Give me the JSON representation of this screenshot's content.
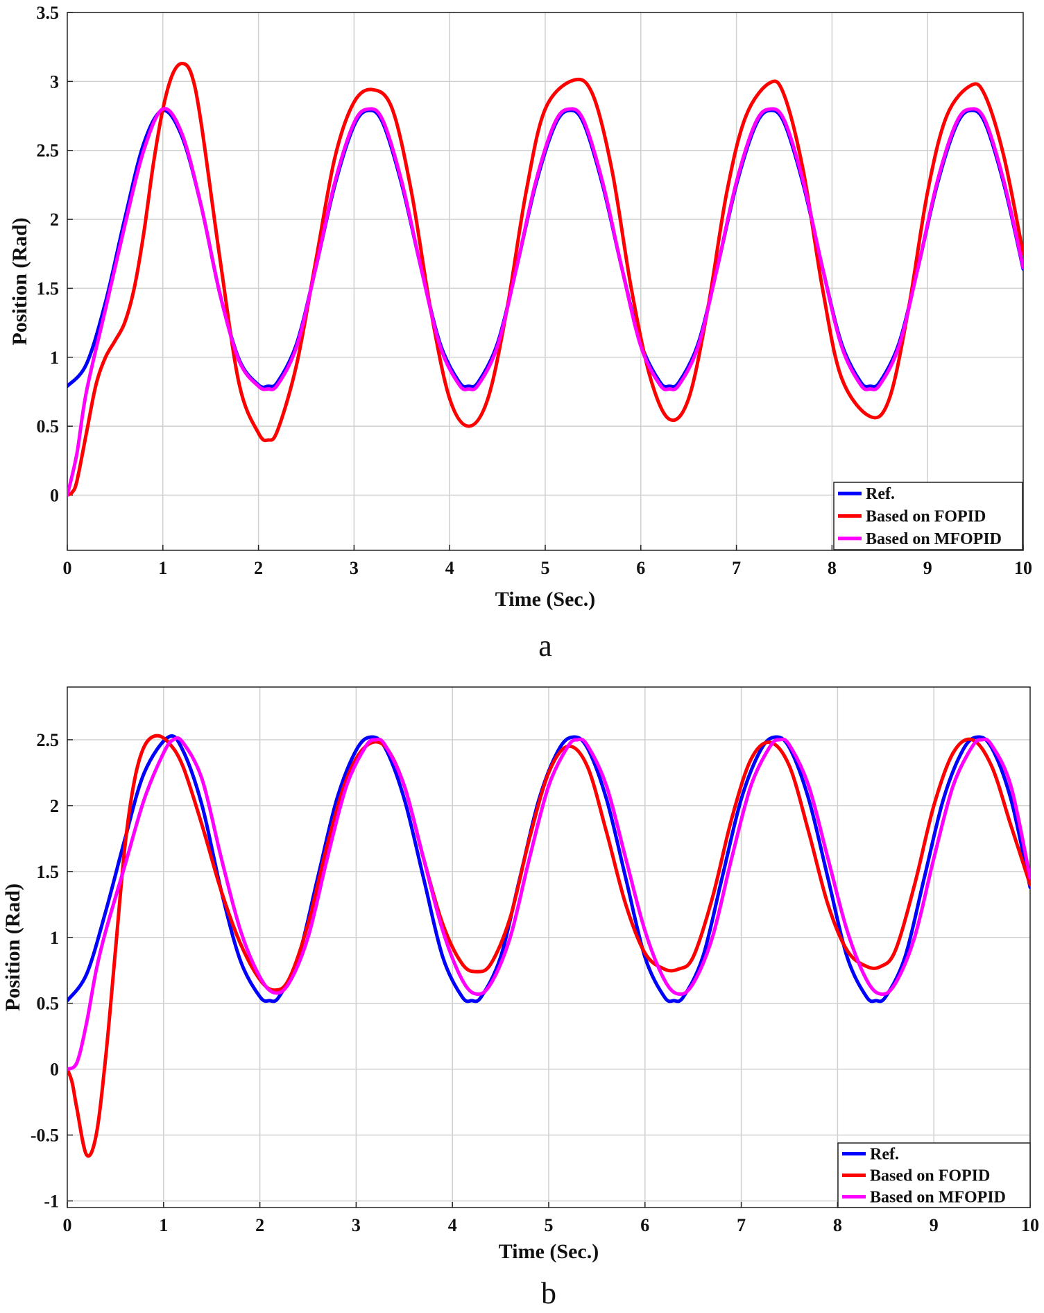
{
  "chart_data": [
    {
      "panel_label": "a",
      "type": "line",
      "title": "",
      "xlabel": "Time (Sec.)",
      "ylabel": "Position (Rad)",
      "xlim": [
        0,
        10
      ],
      "ylim": [
        -0.4,
        3.5
      ],
      "xticks": [
        0,
        1,
        2,
        3,
        4,
        5,
        6,
        7,
        8,
        9,
        10
      ],
      "yticks": [
        0,
        0.5,
        1,
        1.5,
        2,
        2.5,
        3,
        3.5
      ],
      "ytick_labels": [
        "0",
        "0.5",
        "1",
        "1.5",
        "2",
        "2.5",
        "3",
        "3.5"
      ],
      "grid": true,
      "legend_position": "bottom-right",
      "series": [
        {
          "name": "Ref.",
          "color": "#0000ff",
          "x": [
            0,
            0.2,
            0.4,
            0.6,
            0.8,
            1.0,
            1.2,
            1.4,
            1.6,
            1.8,
            2.0,
            2.1,
            2.2,
            2.4,
            2.6,
            2.8,
            3.0,
            3.15,
            3.3,
            3.5,
            3.7,
            3.9,
            4.1,
            4.2,
            4.3,
            4.5,
            4.7,
            4.9,
            5.1,
            5.25,
            5.4,
            5.6,
            5.8,
            6.0,
            6.2,
            6.3,
            6.4,
            6.6,
            6.8,
            7.0,
            7.2,
            7.35,
            7.5,
            7.7,
            7.9,
            8.1,
            8.3,
            8.4,
            8.5,
            8.7,
            8.9,
            9.1,
            9.3,
            9.45,
            9.6,
            9.8,
            10.0
          ],
          "y": [
            0.79,
            0.95,
            1.4,
            2.0,
            2.55,
            2.79,
            2.6,
            2.1,
            1.45,
            0.98,
            0.8,
            0.79,
            0.82,
            1.1,
            1.65,
            2.25,
            2.68,
            2.79,
            2.7,
            2.25,
            1.65,
            1.1,
            0.82,
            0.79,
            0.82,
            1.1,
            1.65,
            2.25,
            2.68,
            2.79,
            2.7,
            2.25,
            1.65,
            1.1,
            0.82,
            0.79,
            0.82,
            1.1,
            1.65,
            2.25,
            2.68,
            2.79,
            2.7,
            2.25,
            1.65,
            1.1,
            0.82,
            0.79,
            0.82,
            1.1,
            1.65,
            2.25,
            2.68,
            2.79,
            2.7,
            2.25,
            1.64
          ]
        },
        {
          "name": "Based on FOPID",
          "color": "#ff0000",
          "x": [
            0,
            0.05,
            0.1,
            0.2,
            0.3,
            0.4,
            0.5,
            0.6,
            0.7,
            0.8,
            0.9,
            1.0,
            1.1,
            1.2,
            1.3,
            1.4,
            1.6,
            1.8,
            2.0,
            2.1,
            2.2,
            2.4,
            2.6,
            2.8,
            3.0,
            3.2,
            3.4,
            3.6,
            3.8,
            4.0,
            4.2,
            4.4,
            4.6,
            4.8,
            5.0,
            5.3,
            5.5,
            5.7,
            5.9,
            6.1,
            6.3,
            6.5,
            6.7,
            6.9,
            7.1,
            7.35,
            7.5,
            7.7,
            7.9,
            8.1,
            8.4,
            8.6,
            8.8,
            9.0,
            9.2,
            9.45,
            9.6,
            9.8,
            10.0
          ],
          "y": [
            0.0,
            0.02,
            0.1,
            0.45,
            0.8,
            1.0,
            1.12,
            1.25,
            1.5,
            1.9,
            2.4,
            2.8,
            3.05,
            3.13,
            3.05,
            2.7,
            1.7,
            0.8,
            0.45,
            0.4,
            0.47,
            0.95,
            1.7,
            2.45,
            2.85,
            2.94,
            2.8,
            2.2,
            1.35,
            0.7,
            0.5,
            0.7,
            1.35,
            2.2,
            2.8,
            3.01,
            2.9,
            2.35,
            1.5,
            0.85,
            0.55,
            0.7,
            1.35,
            2.2,
            2.75,
            2.99,
            2.9,
            2.35,
            1.5,
            0.85,
            0.57,
            0.7,
            1.35,
            2.2,
            2.75,
            2.97,
            2.9,
            2.45,
            1.75
          ]
        },
        {
          "name": "Based on MFOPID",
          "color": "#ff00ff",
          "x": [
            0,
            0.1,
            0.2,
            0.4,
            0.6,
            0.8,
            1.0,
            1.2,
            1.4,
            1.6,
            1.8,
            2.0,
            2.1,
            2.2,
            2.4,
            2.6,
            2.8,
            3.0,
            3.15,
            3.3,
            3.5,
            3.7,
            3.9,
            4.1,
            4.2,
            4.3,
            4.5,
            4.7,
            4.9,
            5.1,
            5.25,
            5.4,
            5.6,
            5.8,
            6.0,
            6.2,
            6.3,
            6.4,
            6.6,
            6.8,
            7.0,
            7.2,
            7.35,
            7.5,
            7.7,
            7.9,
            8.1,
            8.3,
            8.4,
            8.5,
            8.7,
            8.9,
            9.1,
            9.3,
            9.45,
            9.6,
            9.8,
            10.0
          ],
          "y": [
            0.0,
            0.3,
            0.75,
            1.35,
            1.95,
            2.5,
            2.8,
            2.62,
            2.1,
            1.45,
            0.97,
            0.79,
            0.77,
            0.8,
            1.08,
            1.65,
            2.27,
            2.7,
            2.8,
            2.72,
            2.27,
            1.65,
            1.08,
            0.8,
            0.77,
            0.8,
            1.08,
            1.65,
            2.27,
            2.7,
            2.8,
            2.72,
            2.27,
            1.65,
            1.08,
            0.8,
            0.77,
            0.8,
            1.08,
            1.65,
            2.27,
            2.7,
            2.8,
            2.72,
            2.27,
            1.65,
            1.08,
            0.8,
            0.77,
            0.8,
            1.08,
            1.65,
            2.27,
            2.7,
            2.8,
            2.72,
            2.27,
            1.65
          ]
        }
      ]
    },
    {
      "panel_label": "b",
      "type": "line",
      "title": "",
      "xlabel": "Time (Sec.)",
      "ylabel": "Position (Rad)",
      "xlim": [
        0,
        10
      ],
      "ylim": [
        -1.05,
        2.9
      ],
      "xticks": [
        0,
        1,
        2,
        3,
        4,
        5,
        6,
        7,
        8,
        9,
        10
      ],
      "yticks": [
        -1,
        -0.5,
        0,
        0.5,
        1,
        1.5,
        2,
        2.5
      ],
      "ytick_labels": [
        "-1",
        "-0.5",
        "0",
        "0.5",
        "1",
        "1.5",
        "2",
        "2.5"
      ],
      "grid": true,
      "legend_position": "bottom-right",
      "series": [
        {
          "name": "Ref.",
          "color": "#0000ff",
          "x": [
            0,
            0.2,
            0.4,
            0.6,
            0.8,
            1.05,
            1.2,
            1.4,
            1.6,
            1.8,
            2.0,
            2.1,
            2.2,
            2.4,
            2.6,
            2.8,
            3.0,
            3.15,
            3.3,
            3.5,
            3.7,
            3.9,
            4.1,
            4.2,
            4.3,
            4.5,
            4.7,
            4.9,
            5.1,
            5.25,
            5.4,
            5.6,
            5.8,
            6.0,
            6.2,
            6.3,
            6.4,
            6.6,
            6.8,
            7.0,
            7.2,
            7.35,
            7.5,
            7.7,
            7.9,
            8.1,
            8.3,
            8.4,
            8.5,
            8.7,
            8.9,
            9.1,
            9.3,
            9.45,
            9.6,
            9.8,
            10.0
          ],
          "y": [
            0.52,
            0.72,
            1.2,
            1.75,
            2.25,
            2.52,
            2.42,
            2.0,
            1.35,
            0.82,
            0.55,
            0.52,
            0.55,
            0.85,
            1.45,
            2.05,
            2.42,
            2.52,
            2.44,
            2.05,
            1.45,
            0.85,
            0.55,
            0.52,
            0.55,
            0.85,
            1.45,
            2.05,
            2.42,
            2.52,
            2.44,
            2.05,
            1.45,
            0.85,
            0.55,
            0.52,
            0.55,
            0.85,
            1.45,
            2.05,
            2.42,
            2.52,
            2.44,
            2.05,
            1.45,
            0.85,
            0.55,
            0.52,
            0.55,
            0.85,
            1.45,
            2.05,
            2.42,
            2.52,
            2.44,
            2.05,
            1.38
          ]
        },
        {
          "name": "Based on FOPID",
          "color": "#ff0000",
          "x": [
            0,
            0.05,
            0.1,
            0.2,
            0.3,
            0.4,
            0.5,
            0.6,
            0.7,
            0.8,
            0.92,
            1.05,
            1.2,
            1.4,
            1.6,
            1.8,
            2.0,
            2.15,
            2.3,
            2.5,
            2.7,
            2.9,
            3.1,
            3.3,
            3.5,
            3.7,
            3.9,
            4.1,
            4.25,
            4.4,
            4.6,
            4.8,
            5.0,
            5.2,
            5.4,
            5.6,
            5.8,
            6.0,
            6.2,
            6.35,
            6.5,
            6.7,
            6.9,
            7.1,
            7.3,
            7.5,
            7.7,
            7.9,
            8.1,
            8.3,
            8.45,
            8.6,
            8.8,
            9.0,
            9.2,
            9.4,
            9.6,
            9.8,
            10.0
          ],
          "y": [
            0.0,
            -0.1,
            -0.3,
            -0.65,
            -0.5,
            0.1,
            0.9,
            1.7,
            2.2,
            2.45,
            2.53,
            2.48,
            2.3,
            1.85,
            1.35,
            0.95,
            0.68,
            0.6,
            0.68,
            1.1,
            1.7,
            2.2,
            2.45,
            2.45,
            2.15,
            1.6,
            1.1,
            0.8,
            0.74,
            0.8,
            1.15,
            1.75,
            2.25,
            2.45,
            2.3,
            1.8,
            1.25,
            0.88,
            0.76,
            0.76,
            0.85,
            1.3,
            1.9,
            2.35,
            2.48,
            2.3,
            1.8,
            1.25,
            0.9,
            0.78,
            0.78,
            0.9,
            1.4,
            2.0,
            2.4,
            2.5,
            2.3,
            1.85,
            1.4
          ]
        },
        {
          "name": "Based on MFOPID",
          "color": "#ff00ff",
          "x": [
            0,
            0.1,
            0.2,
            0.3,
            0.4,
            0.6,
            0.8,
            1.0,
            1.1,
            1.2,
            1.4,
            1.6,
            1.8,
            2.0,
            2.15,
            2.3,
            2.5,
            2.7,
            2.9,
            3.1,
            3.2,
            3.3,
            3.5,
            3.7,
            3.9,
            4.1,
            4.25,
            4.4,
            4.6,
            4.8,
            5.0,
            5.2,
            5.3,
            5.4,
            5.6,
            5.8,
            6.0,
            6.2,
            6.35,
            6.5,
            6.7,
            6.9,
            7.1,
            7.3,
            7.4,
            7.5,
            7.7,
            7.9,
            8.1,
            8.3,
            8.45,
            8.6,
            8.8,
            9.0,
            9.2,
            9.4,
            9.5,
            9.6,
            9.8,
            10.0
          ],
          "y": [
            0.0,
            0.05,
            0.35,
            0.75,
            1.05,
            1.55,
            2.05,
            2.4,
            2.5,
            2.48,
            2.2,
            1.6,
            1.05,
            0.7,
            0.58,
            0.65,
            1.0,
            1.6,
            2.15,
            2.45,
            2.5,
            2.46,
            2.15,
            1.6,
            1.05,
            0.68,
            0.57,
            0.65,
            1.0,
            1.6,
            2.15,
            2.45,
            2.5,
            2.46,
            2.15,
            1.6,
            1.05,
            0.68,
            0.57,
            0.65,
            1.0,
            1.6,
            2.15,
            2.45,
            2.5,
            2.46,
            2.15,
            1.6,
            1.05,
            0.68,
            0.57,
            0.65,
            1.0,
            1.6,
            2.15,
            2.45,
            2.5,
            2.46,
            2.15,
            1.45
          ]
        }
      ]
    }
  ]
}
